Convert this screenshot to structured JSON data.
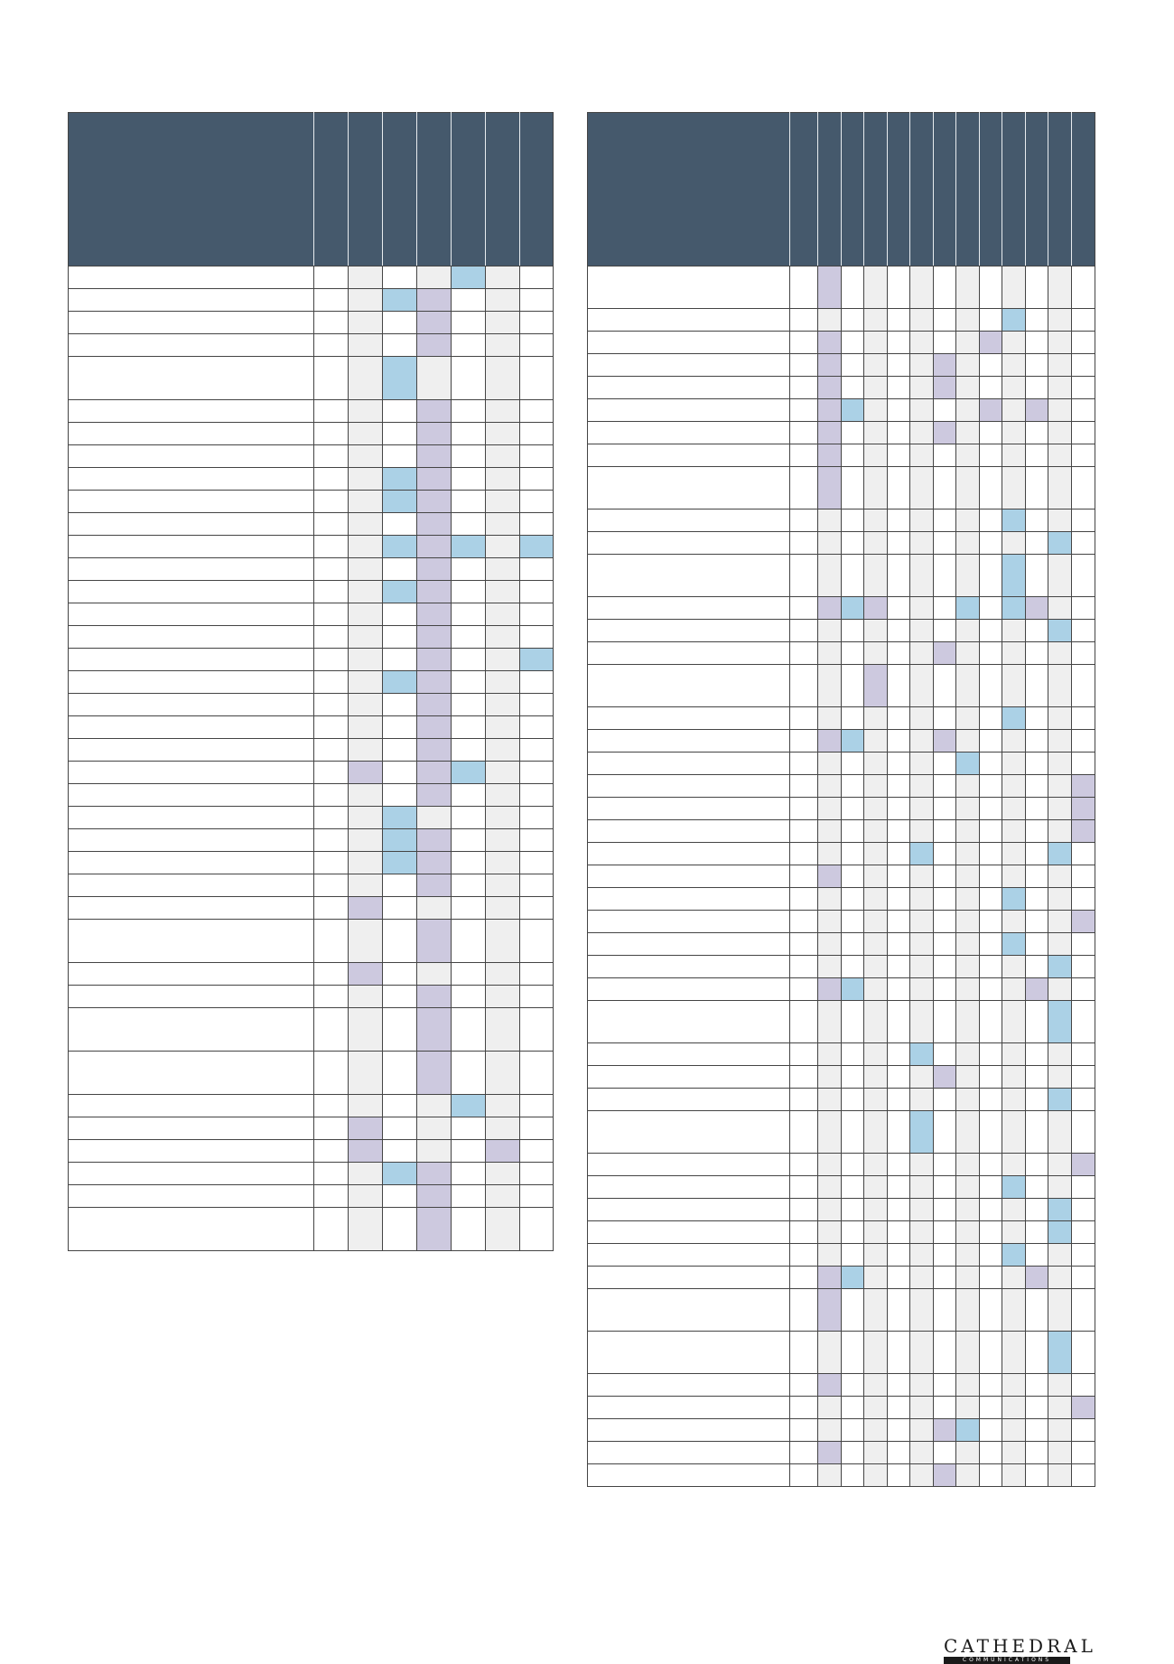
{
  "palette": {
    "header": "#45596c",
    "grey": "#efefef",
    "purple": "#cdc9df",
    "blue": "#abd1e6"
  },
  "left_table": {
    "rows": [
      {
        "t": "s",
        "c": "_____b__"
      },
      {
        "t": "s",
        "c": "___bp___"
      },
      {
        "t": "s",
        "c": "____p___"
      },
      {
        "t": "s",
        "c": "____p___"
      },
      {
        "t": "l",
        "c": "___b____"
      },
      {
        "t": "s",
        "c": "____p___"
      },
      {
        "t": "s",
        "c": "____p___"
      },
      {
        "t": "s",
        "c": "____p___"
      },
      {
        "t": "s",
        "c": "___bp___"
      },
      {
        "t": "s",
        "c": "___bp___"
      },
      {
        "t": "s",
        "c": "____p___"
      },
      {
        "t": "s",
        "c": "___bpb_b"
      },
      {
        "t": "s",
        "c": "____p___"
      },
      {
        "t": "s",
        "c": "___bp___"
      },
      {
        "t": "s",
        "c": "____p___"
      },
      {
        "t": "s",
        "c": "____p___"
      },
      {
        "t": "s",
        "c": "____p__b"
      },
      {
        "t": "s",
        "c": "___bp___"
      },
      {
        "t": "s",
        "c": "____p___"
      },
      {
        "t": "s",
        "c": "____p___"
      },
      {
        "t": "s",
        "c": "____p___"
      },
      {
        "t": "s",
        "c": "__p_pb__"
      },
      {
        "t": "s",
        "c": "____p___"
      },
      {
        "t": "s",
        "c": "___b____"
      },
      {
        "t": "s",
        "c": "___bp___"
      },
      {
        "t": "s",
        "c": "___bp___"
      },
      {
        "t": "s",
        "c": "____p___"
      },
      {
        "t": "s",
        "c": "__p_____"
      },
      {
        "t": "l",
        "c": "____p___"
      },
      {
        "t": "s",
        "c": "__p_____"
      },
      {
        "t": "s",
        "c": "____p___"
      },
      {
        "t": "l",
        "c": "____p___"
      },
      {
        "t": "l",
        "c": "____p___"
      },
      {
        "t": "s",
        "c": "_____b__"
      },
      {
        "t": "s",
        "c": "__p_____"
      },
      {
        "t": "s",
        "c": "__p___p_"
      },
      {
        "t": "s",
        "c": "___bp___"
      },
      {
        "t": "s",
        "c": "____p___"
      },
      {
        "t": "l",
        "c": "____p___"
      }
    ]
  },
  "right_table": {
    "rows": [
      {
        "t": "l",
        "c": "__p___________"
      },
      {
        "t": "s",
        "c": "__________b___"
      },
      {
        "t": "s",
        "c": "__p______p____"
      },
      {
        "t": "s",
        "c": "__p____p______"
      },
      {
        "t": "s",
        "c": "__p____p______"
      },
      {
        "t": "s",
        "c": "__pb_____p_p__"
      },
      {
        "t": "s",
        "c": "__p____p______"
      },
      {
        "t": "s",
        "c": "__p___________"
      },
      {
        "t": "l",
        "c": "__p___________"
      },
      {
        "t": "s",
        "c": "__________b___"
      },
      {
        "t": "s",
        "c": "____________b_"
      },
      {
        "t": "l",
        "c": "__________b___"
      },
      {
        "t": "s",
        "c": "__pbp___b_bp__"
      },
      {
        "t": "s",
        "c": "____________b_"
      },
      {
        "t": "s",
        "c": "_______p______"
      },
      {
        "t": "l",
        "c": "____p_________"
      },
      {
        "t": "s",
        "c": "__________b___"
      },
      {
        "t": "s",
        "c": "__pb___p______"
      },
      {
        "t": "s",
        "c": "________b_____"
      },
      {
        "t": "s",
        "c": "_____________p"
      },
      {
        "t": "s",
        "c": "_____________p"
      },
      {
        "t": "s",
        "c": "_____________p"
      },
      {
        "t": "s",
        "c": "______b_____b_"
      },
      {
        "t": "s",
        "c": "__p___________"
      },
      {
        "t": "s",
        "c": "__________b___"
      },
      {
        "t": "s",
        "c": "_____________p"
      },
      {
        "t": "s",
        "c": "__________b___"
      },
      {
        "t": "s",
        "c": "____________b_"
      },
      {
        "t": "s",
        "c": "__pb_______p__"
      },
      {
        "t": "l",
        "c": "____________b_"
      },
      {
        "t": "s",
        "c": "______b_______"
      },
      {
        "t": "s",
        "c": "_______p______"
      },
      {
        "t": "s",
        "c": "____________b_"
      },
      {
        "t": "l",
        "c": "______b_______"
      },
      {
        "t": "s",
        "c": "_____________p"
      },
      {
        "t": "s",
        "c": "__________b___"
      },
      {
        "t": "s",
        "c": "____________b_"
      },
      {
        "t": "s",
        "c": "____________b_"
      },
      {
        "t": "s",
        "c": "__________b___"
      },
      {
        "t": "s",
        "c": "__pb_______p__"
      },
      {
        "t": "l",
        "c": "__p___________"
      },
      {
        "t": "l",
        "c": "____________b_"
      },
      {
        "t": "s",
        "c": "__p___________"
      },
      {
        "t": "s",
        "c": "_____________p"
      },
      {
        "t": "s",
        "c": "_______pb_____"
      },
      {
        "t": "s",
        "c": "__p___________"
      },
      {
        "t": "s",
        "c": "_______p______"
      }
    ]
  },
  "logo": {
    "word": "CATHEDRAL",
    "sub": "COMMUNICATIONS"
  }
}
